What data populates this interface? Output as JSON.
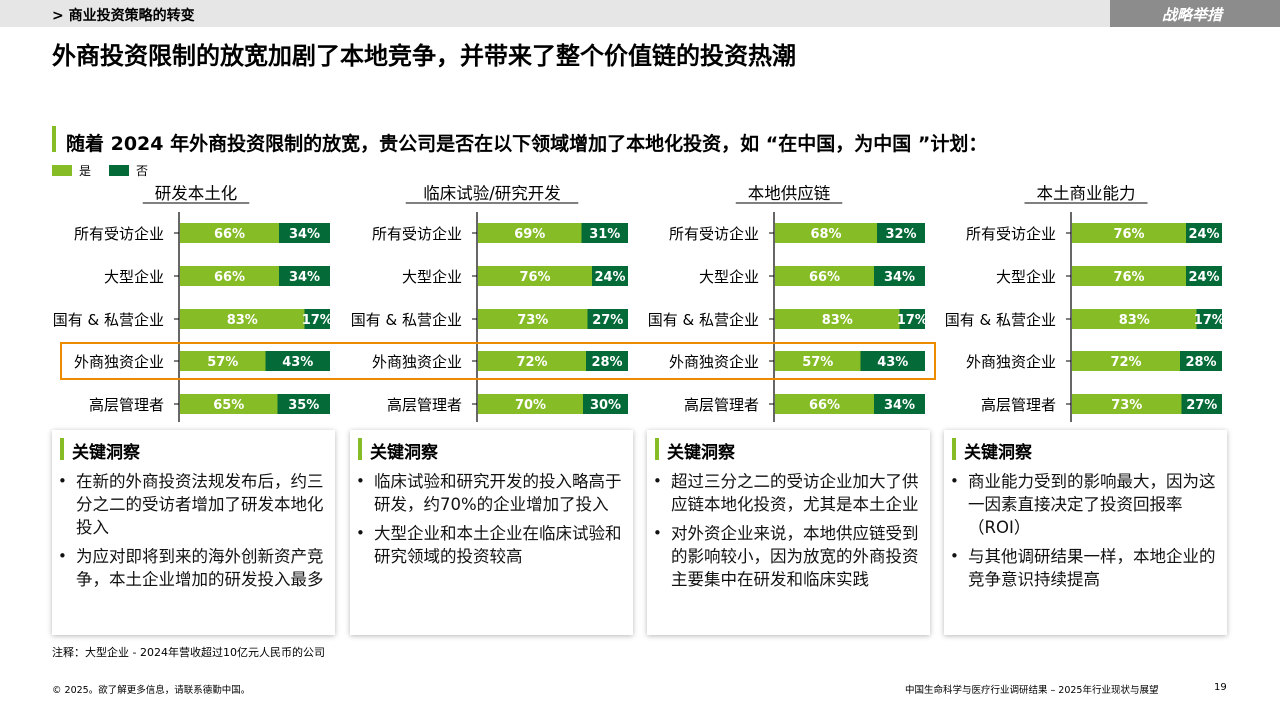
{
  "header": {
    "breadcrumb": "> 商业投资策略的转变",
    "section_tag": "战略举措"
  },
  "title": "外商投资限制的放宽加剧了本地竞争，并带来了整个价值链的投资热潮",
  "question": "随着 2024 年外商投资限制的放宽，贵公司是否在以下领域增加了本地化投资，如 “在中国，为中国 ”计划：",
  "legend": [
    {
      "label": "是",
      "color": "#86bc25"
    },
    {
      "label": "否",
      "color": "#046a38"
    }
  ],
  "colors": {
    "yes": "#86bc25",
    "no": "#046a38",
    "highlight": "#ed8b00"
  },
  "chart_data": {
    "type": "bar",
    "stacked": true,
    "orientation": "horizontal",
    "categories": [
      "所有受访企业",
      "大型企业",
      "国有 & 私营企业",
      "外商独资企业",
      "高层管理者"
    ],
    "panels": [
      {
        "title": "研发本土化",
        "series": [
          {
            "name": "是",
            "values": [
              66,
              66,
              83,
              57,
              65
            ]
          },
          {
            "name": "否",
            "values": [
              34,
              34,
              17,
              43,
              35
            ]
          }
        ]
      },
      {
        "title": "临床试验/研究开发",
        "series": [
          {
            "name": "是",
            "values": [
              69,
              76,
              73,
              72,
              70
            ]
          },
          {
            "name": "否",
            "values": [
              31,
              24,
              27,
              28,
              30
            ]
          }
        ]
      },
      {
        "title": "本地供应链",
        "series": [
          {
            "name": "是",
            "values": [
              68,
              66,
              83,
              57,
              66
            ]
          },
          {
            "name": "否",
            "values": [
              32,
              34,
              17,
              43,
              34
            ]
          }
        ]
      },
      {
        "title": "本土商业能力",
        "series": [
          {
            "name": "是",
            "values": [
              76,
              76,
              83,
              72,
              73
            ]
          },
          {
            "name": "否",
            "values": [
              24,
              24,
              17,
              28,
              27
            ]
          }
        ]
      }
    ],
    "unit": "%",
    "highlighted_category": "外商独资企业"
  },
  "insights": [
    {
      "title": "关键洞察",
      "bullets": [
        "在新的外商投资法规发布后，约三分之二的受访者增加了研发本地化投入",
        "为应对即将到来的海外创新资产竞争，本土企业增加的研发投入最多"
      ]
    },
    {
      "title": "关键洞察",
      "bullets": [
        "临床试验和研究开发的投入略高于研发，约70%的企业增加了投入",
        "大型企业和本土企业在临床试验和研究领域的投资较高"
      ]
    },
    {
      "title": "关键洞察",
      "bullets": [
        "超过三分之二的受访企业加大了供应链本地化投资，尤其是本土企业",
        "对外资企业来说，本地供应链受到的影响较小，因为放宽的外商投资主要集中在研发和临床实践"
      ]
    },
    {
      "title": "关键洞察",
      "bullets": [
        "商业能力受到的影响最大，因为这一因素直接决定了投资回报率（ROI）",
        "与其他调研结果一样，本地企业的竞争意识持续提高"
      ]
    }
  ],
  "footnote": "注释：大型企业 - 2024年营收超过10亿元人民币的公司",
  "footer": {
    "copyright": "© 2025。欲了解更多信息，请联系德勤中国。",
    "report_name": "中国生命科学与医疗行业调研结果 – 2025年行业现状与展望",
    "page_number": "19"
  }
}
